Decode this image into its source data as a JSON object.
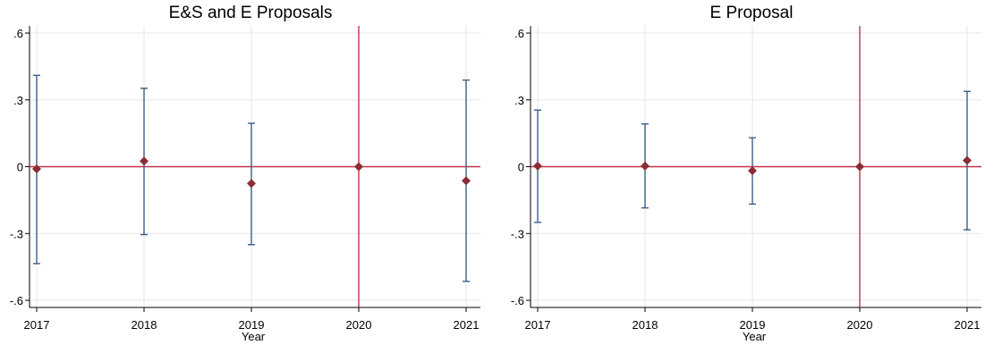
{
  "chart_data": [
    {
      "type": "scatter",
      "title": "E&S and E Proposals",
      "xlabel": "Year",
      "ylabel": "",
      "x": [
        2017,
        2018,
        2019,
        2020,
        2021
      ],
      "x_ticks": [
        "2017",
        "2018",
        "2019",
        "2020",
        "2021"
      ],
      "y_ticks": [
        ".6",
        ".3",
        "0",
        "-.3",
        "-.6"
      ],
      "y_tick_values": [
        0.6,
        0.3,
        0,
        -0.3,
        -0.6
      ],
      "ylim": [
        -0.63,
        0.63
      ],
      "xlim": [
        2017,
        2021
      ],
      "series": [
        {
          "estimates": [
            -0.01,
            0.025,
            -0.075,
            0.0,
            -0.063
          ],
          "ci_low": [
            -0.435,
            -0.305,
            -0.35,
            0.0,
            -0.515
          ],
          "ci_high": [
            0.41,
            0.352,
            0.195,
            0.0,
            0.389
          ]
        }
      ],
      "reference_lines": {
        "y": 0,
        "x": 2020
      },
      "grid": true,
      "colors": {
        "marker": "#8b2c36",
        "ci": "#3a5f88",
        "reference": "#c2334d",
        "grid": "#e6e6e6"
      }
    },
    {
      "type": "scatter",
      "title": "E Proposal",
      "xlabel": "Year",
      "ylabel": "",
      "x": [
        2017,
        2018,
        2019,
        2020,
        2021
      ],
      "x_ticks": [
        "2017",
        "2018",
        "2019",
        "2020",
        "2021"
      ],
      "y_ticks": [
        ".6",
        ".3",
        "0",
        "-.3",
        "-.6"
      ],
      "y_tick_values": [
        0.6,
        0.3,
        0,
        -0.3,
        -0.6
      ],
      "ylim": [
        -0.63,
        0.63
      ],
      "xlim": [
        2017,
        2021
      ],
      "series": [
        {
          "estimates": [
            0.003,
            0.003,
            -0.018,
            0.0,
            0.028
          ],
          "ci_low": [
            -0.25,
            -0.185,
            -0.168,
            0.0,
            -0.283
          ],
          "ci_high": [
            0.254,
            0.192,
            0.13,
            0.0,
            0.338
          ]
        }
      ],
      "reference_lines": {
        "y": 0,
        "x": 2020
      },
      "grid": true,
      "colors": {
        "marker": "#8b2c36",
        "ci": "#3a5f88",
        "reference": "#c2334d",
        "grid": "#e6e6e6"
      }
    }
  ]
}
